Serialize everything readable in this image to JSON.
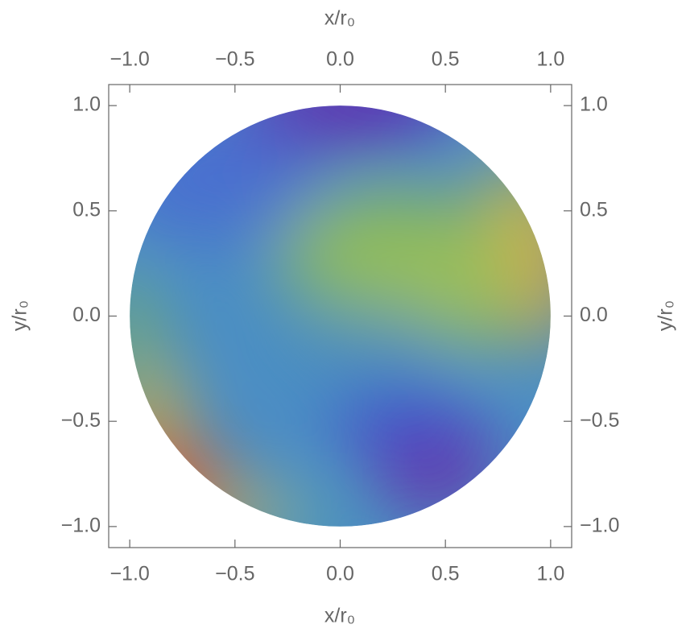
{
  "chart_data": {
    "type": "density",
    "x_label": "x/r₀",
    "y_label": "y/r₀",
    "xlim": [
      -1.1,
      1.1
    ],
    "ylim": [
      -1.1,
      1.1
    ],
    "xticks": [
      {
        "value": -1.0,
        "label": "−1.0"
      },
      {
        "value": -0.5,
        "label": "−0.5"
      },
      {
        "value": 0.0,
        "label": "0.0"
      },
      {
        "value": 0.5,
        "label": "0.5"
      },
      {
        "value": 1.0,
        "label": "1.0"
      }
    ],
    "yticks": [
      {
        "value": -1.0,
        "label": "−1.0"
      },
      {
        "value": -0.5,
        "label": "−0.5"
      },
      {
        "value": 0.0,
        "label": "0.0"
      },
      {
        "value": 0.5,
        "label": "0.5"
      },
      {
        "value": 1.0,
        "label": "1.0"
      }
    ],
    "grid": false
  }
}
